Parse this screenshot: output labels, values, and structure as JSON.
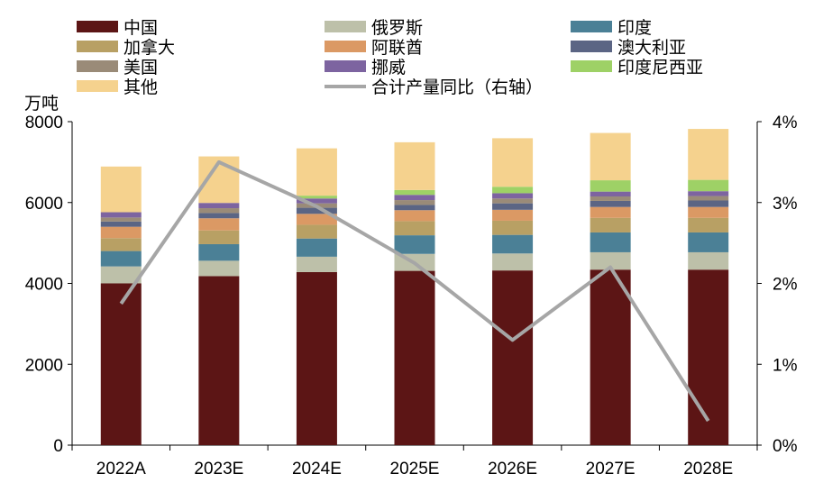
{
  "chart_data": {
    "type": "bar",
    "stacked": true,
    "y_unit_label": "万吨",
    "categories": [
      "2022A",
      "2023E",
      "2024E",
      "2025E",
      "2026E",
      "2027E",
      "2028E"
    ],
    "ylim": [
      0,
      8000
    ],
    "yticks": [
      0,
      2000,
      4000,
      6000,
      8000
    ],
    "y2lim": [
      0,
      4
    ],
    "y2ticks": [
      "0%",
      "1%",
      "2%",
      "3%",
      "4%"
    ],
    "grid": false,
    "legend_position": "top",
    "series": [
      {
        "name": "中国",
        "color": "#5C1515",
        "values": [
          4000,
          4180,
          4280,
          4310,
          4320,
          4340,
          4340
        ]
      },
      {
        "name": "俄罗斯",
        "color": "#BDC0A9",
        "values": [
          420,
          380,
          380,
          420,
          420,
          430,
          430
        ]
      },
      {
        "name": "印度",
        "color": "#4B8096",
        "values": [
          380,
          410,
          450,
          460,
          460,
          490,
          490
        ]
      },
      {
        "name": "加拿大",
        "color": "#B8A064",
        "values": [
          320,
          340,
          340,
          350,
          350,
          360,
          360
        ]
      },
      {
        "name": "阿联酋",
        "color": "#DB9964",
        "values": [
          280,
          300,
          270,
          270,
          270,
          270,
          270
        ]
      },
      {
        "name": "澳大利亚",
        "color": "#5B6584",
        "values": [
          130,
          130,
          150,
          130,
          160,
          150,
          160
        ]
      },
      {
        "name": "美国",
        "color": "#9A8B78",
        "values": [
          100,
          120,
          110,
          120,
          120,
          110,
          110
        ]
      },
      {
        "name": "挪威",
        "color": "#7D64A0",
        "values": [
          130,
          130,
          120,
          130,
          130,
          120,
          120
        ]
      },
      {
        "name": "印度尼西亚",
        "color": "#9ED166",
        "values": [
          0,
          0,
          70,
          120,
          160,
          280,
          280
        ]
      },
      {
        "name": "其他",
        "color": "#F5D28E",
        "values": [
          1130,
          1150,
          1170,
          1180,
          1200,
          1170,
          1260
        ]
      }
    ],
    "line_series": {
      "name": "合计产量同比（右轴）",
      "color": "#A6A6A6",
      "axis": "right",
      "values": [
        1.75,
        3.5,
        2.95,
        2.25,
        1.3,
        2.2,
        0.3
      ]
    }
  }
}
